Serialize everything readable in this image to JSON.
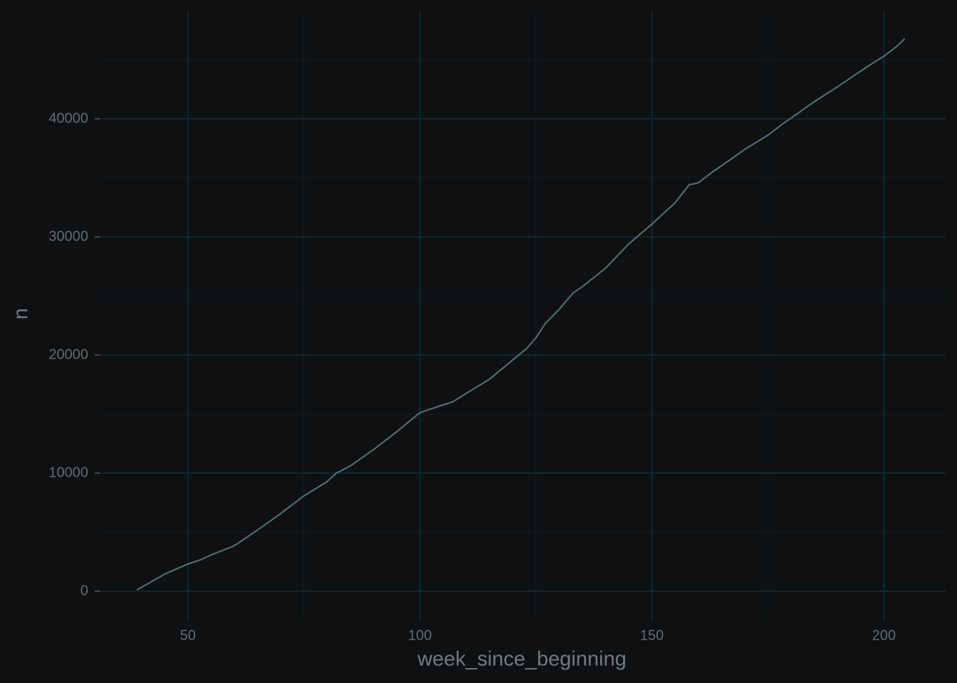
{
  "chart_data": {
    "type": "line",
    "x_label": "week_since_beginning",
    "y_label": "n",
    "x": [
      39,
      45,
      50,
      53,
      55,
      60,
      63,
      65,
      70,
      75,
      80,
      82,
      85,
      90,
      95,
      100,
      105,
      107,
      110,
      115,
      120,
      123,
      125,
      127,
      130,
      133,
      135,
      140,
      145,
      150,
      155,
      158,
      160,
      163,
      165,
      170,
      175,
      178,
      180,
      183,
      185,
      190,
      195,
      198,
      200,
      203,
      204.5
    ],
    "series": [
      {
        "name": "n",
        "color": "#4f6a73",
        "values": [
          100,
          1450,
          2300,
          2700,
          3070,
          3850,
          4640,
          5180,
          6570,
          8070,
          9280,
          10000,
          10600,
          11990,
          13500,
          15120,
          15780,
          16020,
          16750,
          17950,
          19580,
          20540,
          21450,
          22650,
          23860,
          25240,
          25780,
          27350,
          29400,
          31080,
          32890,
          34400,
          34580,
          35480,
          36020,
          37410,
          38610,
          39520,
          40060,
          40900,
          41450,
          42710,
          44040,
          44820,
          45300,
          46200,
          46800
        ]
      }
    ],
    "xlim": [
      31,
      213.3
    ],
    "ylim": [
      -2169,
      49157
    ],
    "xticks": [
      50,
      100,
      150,
      200
    ],
    "yticks": [
      0,
      10000,
      20000,
      30000,
      40000
    ],
    "x_minor_ticks": [
      75,
      125,
      175
    ],
    "y_minor_ticks": [
      5000,
      15000,
      25000,
      35000,
      45000
    ],
    "grid": true
  }
}
